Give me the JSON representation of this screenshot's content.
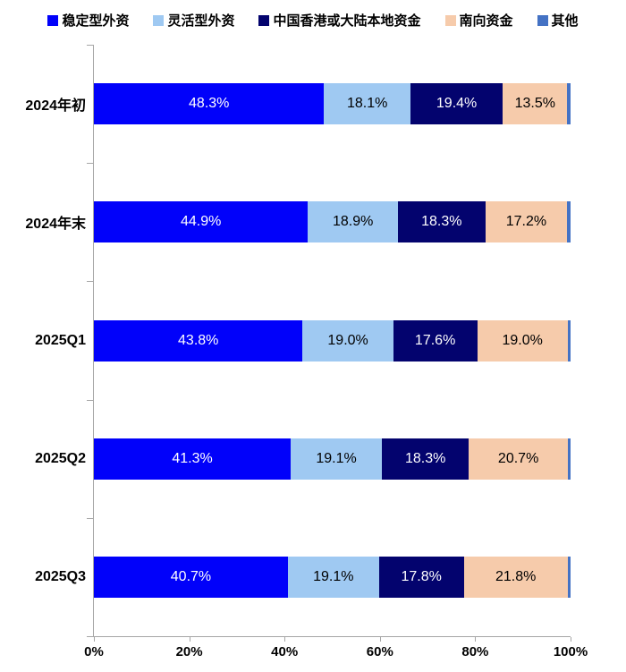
{
  "chart_data": {
    "type": "bar",
    "orientation": "horizontal",
    "stacked": true,
    "unit": "%",
    "title": "",
    "xlabel": "",
    "ylabel": "",
    "xlim": [
      0,
      100
    ],
    "grid": false,
    "legend_position": "top",
    "axis_color": "#A6A6A6",
    "x_ticks": [
      "0%",
      "20%",
      "40%",
      "60%",
      "80%",
      "100%"
    ],
    "x_tick_values": [
      0,
      20,
      40,
      60,
      80,
      100
    ],
    "categories": [
      "2024年初",
      "2024年末",
      "2025Q1",
      "2025Q2",
      "2025Q3"
    ],
    "series": [
      {
        "name": "稳定型外资",
        "color": "#0101FA",
        "label_color": "#ffffff",
        "show_labels": true,
        "values": [
          48.3,
          44.9,
          43.8,
          41.3,
          40.7
        ]
      },
      {
        "name": "灵活型外资",
        "color": "#9FC9F2",
        "label_color": "#000000",
        "show_labels": true,
        "values": [
          18.1,
          18.9,
          19.0,
          19.1,
          19.1
        ]
      },
      {
        "name": "中国香港或大陆本地资金",
        "color": "#03036E",
        "label_color": "#ffffff",
        "show_labels": true,
        "values": [
          19.4,
          18.3,
          17.6,
          18.3,
          17.8
        ]
      },
      {
        "name": "南向资金",
        "color": "#F6CBAB",
        "label_color": "#000000",
        "show_labels": true,
        "values": [
          13.5,
          17.2,
          19.0,
          20.7,
          21.8
        ]
      },
      {
        "name": "其他",
        "color": "#4472C4",
        "label_color": "#000000",
        "show_labels": false,
        "values": [
          0.7,
          0.7,
          0.6,
          0.6,
          0.6
        ]
      }
    ]
  }
}
